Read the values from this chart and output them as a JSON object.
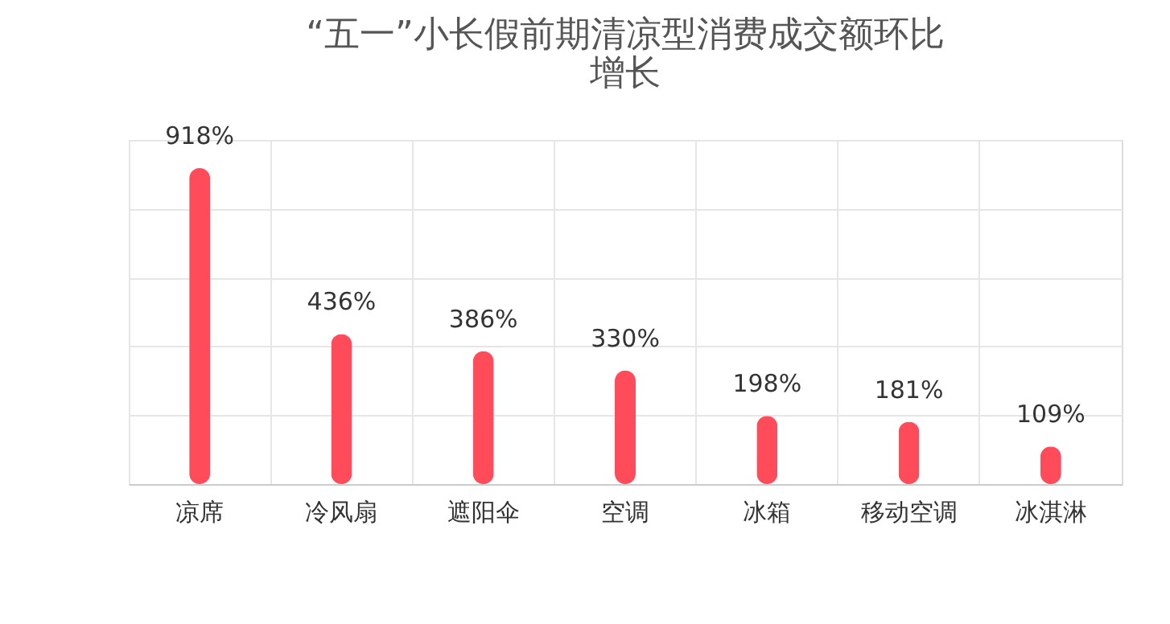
{
  "chart_data": {
    "type": "bar",
    "title": [
      "“五一”小长假前期清凉型消费成交额环比",
      "增长"
    ],
    "categories": [
      "凉席",
      "冷风扇",
      "遮阳伞",
      "空调",
      "冰箱",
      "移动空调",
      "冰淇淋"
    ],
    "values": [
      918,
      436,
      386,
      330,
      198,
      181,
      109
    ],
    "value_labels": [
      "918%",
      "436%",
      "386%",
      "330%",
      "198%",
      "181%",
      "109%"
    ],
    "color": "#ff4b5a",
    "ylim": [
      0,
      1000
    ],
    "yticks": [
      {
        "value": 0,
        "label": null
      },
      {
        "value": 200,
        "label": null
      },
      {
        "value": 400,
        "label": null
      },
      {
        "value": 600,
        "label": null
      },
      {
        "value": 800,
        "label": null
      },
      {
        "value": 1000,
        "label": null
      }
    ],
    "grid": true,
    "tick_labels": "x"
  }
}
